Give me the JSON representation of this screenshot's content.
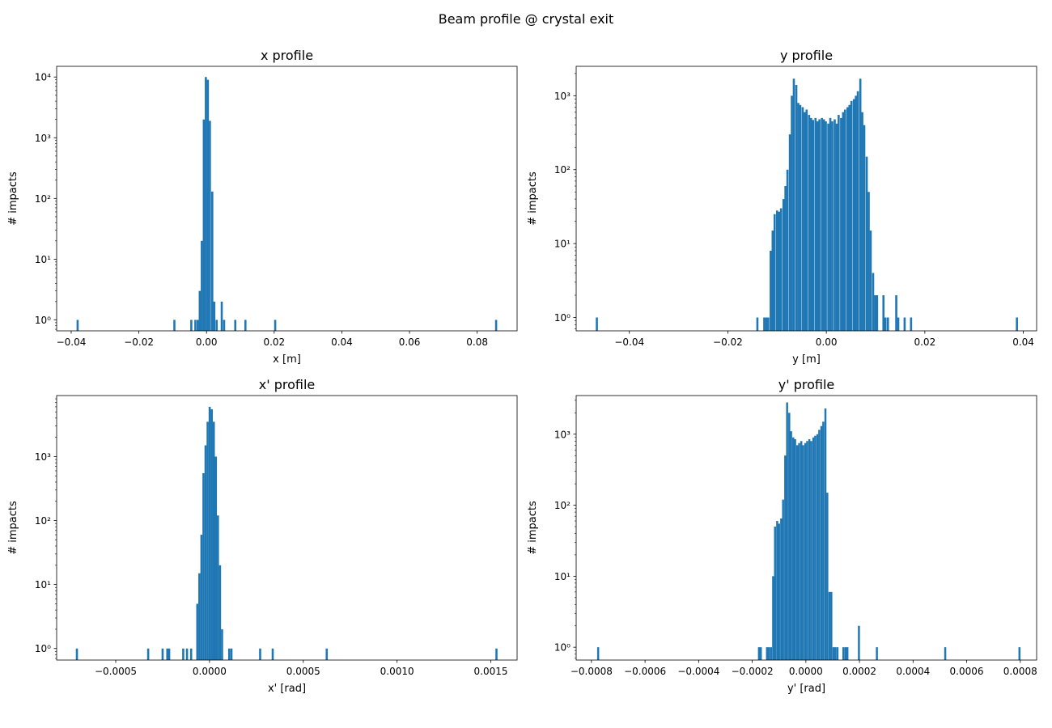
{
  "suptitle": "Beam profile @ crystal exit",
  "bar_color": "#1f77b4",
  "chart_data": [
    {
      "type": "bar",
      "title": "x profile",
      "xlabel": "x [m]",
      "ylabel": "# impacts",
      "yscale": "log",
      "xlim": [
        -0.0443,
        0.0918
      ],
      "ylim": [
        0.66,
        15000
      ],
      "bin_width": 0.00062,
      "xticks": [
        -0.04,
        -0.02,
        0.0,
        0.02,
        0.04,
        0.06,
        0.08
      ],
      "xtick_labels": [
        "−0.04",
        "−0.02",
        "0.00",
        "0.02",
        "0.04",
        "0.06",
        "0.08"
      ],
      "yticks": [
        1,
        10,
        100,
        1000,
        10000
      ],
      "ytick_labels": [
        "10⁰",
        "10¹",
        "10²",
        "10³",
        "10⁴"
      ],
      "grid": false,
      "bins": [
        {
          "x": -0.0381,
          "y": 1
        },
        {
          "x": -0.0095,
          "y": 1
        },
        {
          "x": -0.0045,
          "y": 1
        },
        {
          "x": -0.0033,
          "y": 1
        },
        {
          "x": -0.0026,
          "y": 1
        },
        {
          "x": -0.002,
          "y": 3
        },
        {
          "x": -0.0014,
          "y": 20
        },
        {
          "x": -0.0008,
          "y": 2000
        },
        {
          "x": -0.0002,
          "y": 10000
        },
        {
          "x": 0.0004,
          "y": 9000
        },
        {
          "x": 0.001,
          "y": 1900
        },
        {
          "x": 0.0017,
          "y": 130
        },
        {
          "x": 0.0023,
          "y": 2
        },
        {
          "x": 0.003,
          "y": 1
        },
        {
          "x": 0.0045,
          "y": 2
        },
        {
          "x": 0.0052,
          "y": 1
        },
        {
          "x": 0.0085,
          "y": 1
        },
        {
          "x": 0.0115,
          "y": 1
        },
        {
          "x": 0.0203,
          "y": 1
        },
        {
          "x": 0.0856,
          "y": 1
        }
      ]
    },
    {
      "type": "bar",
      "title": "y profile",
      "xlabel": "y [m]",
      "ylabel": "# impacts",
      "yscale": "log",
      "xlim": [
        -0.0508,
        0.0427
      ],
      "ylim": [
        0.66,
        2500
      ],
      "bin_width": 0.00043,
      "xticks": [
        -0.04,
        -0.02,
        0.0,
        0.02,
        0.04
      ],
      "xtick_labels": [
        "−0.04",
        "−0.02",
        "0.00",
        "0.02",
        "0.04"
      ],
      "yticks": [
        1,
        10,
        100,
        1000
      ],
      "ytick_labels": [
        "10⁰",
        "10¹",
        "10²",
        "10³"
      ],
      "grid": false,
      "bins": [
        {
          "x": -0.0466,
          "y": 1
        },
        {
          "x": -0.014,
          "y": 1
        },
        {
          "x": -0.0126,
          "y": 1
        },
        {
          "x": -0.0122,
          "y": 1
        },
        {
          "x": -0.0118,
          "y": 1
        },
        {
          "x": -0.0113,
          "y": 8
        },
        {
          "x": -0.0109,
          "y": 15
        },
        {
          "x": -0.0105,
          "y": 25
        },
        {
          "x": -0.01,
          "y": 28
        },
        {
          "x": -0.0096,
          "y": 27
        },
        {
          "x": -0.0092,
          "y": 30
        },
        {
          "x": -0.0087,
          "y": 40
        },
        {
          "x": -0.0083,
          "y": 60
        },
        {
          "x": -0.0079,
          "y": 100
        },
        {
          "x": -0.0074,
          "y": 300
        },
        {
          "x": -0.007,
          "y": 1000
        },
        {
          "x": -0.0066,
          "y": 1700
        },
        {
          "x": -0.0061,
          "y": 1400
        },
        {
          "x": -0.0057,
          "y": 800
        },
        {
          "x": -0.0053,
          "y": 750
        },
        {
          "x": -0.0048,
          "y": 700
        },
        {
          "x": -0.0044,
          "y": 600
        },
        {
          "x": -0.004,
          "y": 650
        },
        {
          "x": -0.0035,
          "y": 550
        },
        {
          "x": -0.0031,
          "y": 500
        },
        {
          "x": -0.0027,
          "y": 470
        },
        {
          "x": -0.0022,
          "y": 500
        },
        {
          "x": -0.0018,
          "y": 450
        },
        {
          "x": -0.0014,
          "y": 480
        },
        {
          "x": -0.0009,
          "y": 500
        },
        {
          "x": -0.0005,
          "y": 480
        },
        {
          "x": -0.0001,
          "y": 450
        },
        {
          "x": 0.0004,
          "y": 420
        },
        {
          "x": 0.0008,
          "y": 500
        },
        {
          "x": 0.0012,
          "y": 450
        },
        {
          "x": 0.0017,
          "y": 480
        },
        {
          "x": 0.0021,
          "y": 420
        },
        {
          "x": 0.0025,
          "y": 550
        },
        {
          "x": 0.003,
          "y": 500
        },
        {
          "x": 0.0034,
          "y": 600
        },
        {
          "x": 0.0038,
          "y": 650
        },
        {
          "x": 0.0043,
          "y": 700
        },
        {
          "x": 0.0047,
          "y": 750
        },
        {
          "x": 0.0051,
          "y": 850
        },
        {
          "x": 0.0056,
          "y": 900
        },
        {
          "x": 0.006,
          "y": 1000
        },
        {
          "x": 0.0064,
          "y": 1150
        },
        {
          "x": 0.0069,
          "y": 1700
        },
        {
          "x": 0.0073,
          "y": 600
        },
        {
          "x": 0.0077,
          "y": 400
        },
        {
          "x": 0.0082,
          "y": 150
        },
        {
          "x": 0.0086,
          "y": 50
        },
        {
          "x": 0.009,
          "y": 15
        },
        {
          "x": 0.0095,
          "y": 4
        },
        {
          "x": 0.0099,
          "y": 2
        },
        {
          "x": 0.0103,
          "y": 2
        },
        {
          "x": 0.0116,
          "y": 2
        },
        {
          "x": 0.012,
          "y": 1
        },
        {
          "x": 0.0125,
          "y": 1
        },
        {
          "x": 0.0142,
          "y": 2
        },
        {
          "x": 0.0146,
          "y": 1
        },
        {
          "x": 0.0159,
          "y": 1
        },
        {
          "x": 0.0172,
          "y": 1
        },
        {
          "x": 0.0387,
          "y": 1
        }
      ]
    },
    {
      "type": "bar",
      "title": "x' profile",
      "xlabel": "x' [rad]",
      "ylabel": "# impacts",
      "yscale": "log",
      "xlim": [
        -0.000815,
        0.00164
      ],
      "ylim": [
        0.66,
        9000
      ],
      "bin_width": 1.12e-05,
      "xticks": [
        -0.0005,
        0.0,
        0.0005,
        0.001,
        0.0015
      ],
      "xtick_labels": [
        "−0.0005",
        "0.0000",
        "0.0005",
        "0.0010",
        "0.0015"
      ],
      "yticks": [
        1,
        10,
        100,
        1000
      ],
      "ytick_labels": [
        "10⁰",
        "10¹",
        "10²",
        "10³"
      ],
      "grid": false,
      "bins": [
        {
          "x": -0.000707,
          "y": 1
        },
        {
          "x": -0.000327,
          "y": 1
        },
        {
          "x": -0.00025,
          "y": 1
        },
        {
          "x": -0.000225,
          "y": 1
        },
        {
          "x": -0.000215,
          "y": 1
        },
        {
          "x": -0.00014,
          "y": 1
        },
        {
          "x": -0.00012,
          "y": 1
        },
        {
          "x": -9.8e-05,
          "y": 1
        },
        {
          "x": -6.5e-05,
          "y": 5
        },
        {
          "x": -5.4e-05,
          "y": 15
        },
        {
          "x": -4.3e-05,
          "y": 60
        },
        {
          "x": -3.2e-05,
          "y": 550
        },
        {
          "x": -2.1e-05,
          "y": 1500
        },
        {
          "x": -1e-05,
          "y": 3500
        },
        {
          "x": 1e-06,
          "y": 6000
        },
        {
          "x": 1.2e-05,
          "y": 5500
        },
        {
          "x": 2.3e-05,
          "y": 3500
        },
        {
          "x": 3.4e-05,
          "y": 1000
        },
        {
          "x": 4.5e-05,
          "y": 120
        },
        {
          "x": 5.6e-05,
          "y": 20
        },
        {
          "x": 6.7e-05,
          "y": 2
        },
        {
          "x": 0.000105,
          "y": 1
        },
        {
          "x": 0.000117,
          "y": 1
        },
        {
          "x": 0.00027,
          "y": 1
        },
        {
          "x": 0.000337,
          "y": 1
        },
        {
          "x": 0.000625,
          "y": 1
        },
        {
          "x": 0.00153,
          "y": 1
        }
      ]
    },
    {
      "type": "bar",
      "title": "y' profile",
      "xlabel": "y' [rad]",
      "ylabel": "# impacts",
      "yscale": "log",
      "xlim": [
        -0.000857,
        0.000861
      ],
      "ylim": [
        0.66,
        3500
      ],
      "bin_width": 7.5e-06,
      "xticks": [
        -0.0008,
        -0.0006,
        -0.0004,
        -0.0002,
        0.0,
        0.0002,
        0.0004,
        0.0006,
        0.0008
      ],
      "xtick_labels": [
        "−0.0008",
        "−0.0006",
        "−0.0004",
        "−0.0002",
        "0.0000",
        "0.0002",
        "0.0004",
        "0.0006",
        "0.0008"
      ],
      "yticks": [
        1,
        10,
        100,
        1000
      ],
      "ytick_labels": [
        "10⁰",
        "10¹",
        "10²",
        "10³"
      ],
      "grid": false,
      "bins": [
        {
          "x": -0.000775,
          "y": 1
        },
        {
          "x": -0.000175,
          "y": 1
        },
        {
          "x": -0.000168,
          "y": 1
        },
        {
          "x": -0.000145,
          "y": 1
        },
        {
          "x": -0.000138,
          "y": 1
        },
        {
          "x": -0.00013,
          "y": 1
        },
        {
          "x": -0.000122,
          "y": 10
        },
        {
          "x": -0.000115,
          "y": 50
        },
        {
          "x": -0.000107,
          "y": 60
        },
        {
          "x": -0.0001,
          "y": 55
        },
        {
          "x": -9.2e-05,
          "y": 65
        },
        {
          "x": -8.5e-05,
          "y": 120
        },
        {
          "x": -7.7e-05,
          "y": 500
        },
        {
          "x": -7e-05,
          "y": 2800
        },
        {
          "x": -6.2e-05,
          "y": 2000
        },
        {
          "x": -5.5e-05,
          "y": 1100
        },
        {
          "x": -4.7e-05,
          "y": 900
        },
        {
          "x": -4e-05,
          "y": 850
        },
        {
          "x": -3.2e-05,
          "y": 700
        },
        {
          "x": -2.5e-05,
          "y": 750
        },
        {
          "x": -1.7e-05,
          "y": 800
        },
        {
          "x": -1e-05,
          "y": 700
        },
        {
          "x": -2e-06,
          "y": 750
        },
        {
          "x": 5e-06,
          "y": 800
        },
        {
          "x": 1.3e-05,
          "y": 850
        },
        {
          "x": 2e-05,
          "y": 800
        },
        {
          "x": 2.8e-05,
          "y": 900
        },
        {
          "x": 3.5e-05,
          "y": 950
        },
        {
          "x": 4.3e-05,
          "y": 1000
        },
        {
          "x": 5e-05,
          "y": 1150
        },
        {
          "x": 5.8e-05,
          "y": 1300
        },
        {
          "x": 6.5e-05,
          "y": 1500
        },
        {
          "x": 7.3e-05,
          "y": 2300
        },
        {
          "x": 8e-05,
          "y": 150
        },
        {
          "x": 8.8e-05,
          "y": 6
        },
        {
          "x": 9.5e-05,
          "y": 6
        },
        {
          "x": 0.000103,
          "y": 1
        },
        {
          "x": 0.00011,
          "y": 1
        },
        {
          "x": 0.000118,
          "y": 1
        },
        {
          "x": 0.00014,
          "y": 1
        },
        {
          "x": 0.000148,
          "y": 1
        },
        {
          "x": 0.000155,
          "y": 1
        },
        {
          "x": 0.000198,
          "y": 2
        },
        {
          "x": 0.000265,
          "y": 1
        },
        {
          "x": 0.00052,
          "y": 1
        },
        {
          "x": 0.000797,
          "y": 1
        }
      ]
    }
  ]
}
